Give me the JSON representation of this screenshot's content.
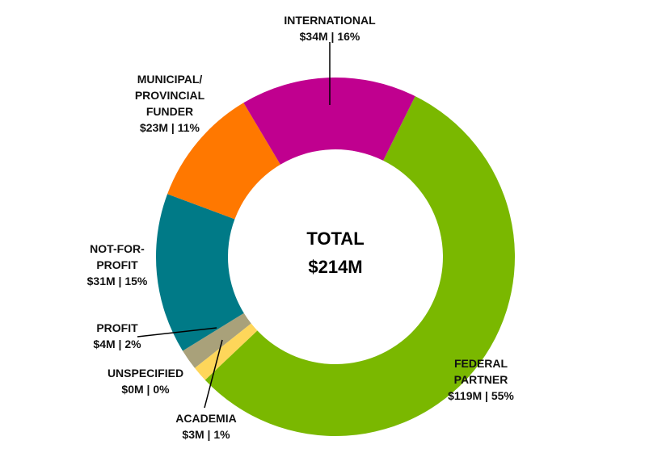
{
  "chart_data": {
    "type": "pie",
    "variant": "donut",
    "center_label": {
      "title": "TOTAL",
      "value": "$214M"
    },
    "unit": "$M",
    "slices": [
      {
        "name": "FEDERAL PARTNER",
        "name_lines": [
          "FEDERAL",
          "PARTNER"
        ],
        "value": 119,
        "percent": 55,
        "label": "$119M | 55%",
        "color": "#7ab800"
      },
      {
        "name": "ACADEMIA",
        "name_lines": [
          "ACADEMIA"
        ],
        "value": 3,
        "percent": 1,
        "label": "$3M | 1%",
        "color": "#fed65a"
      },
      {
        "name": "UNSPECIFIED",
        "name_lines": [
          "UNSPECIFIED"
        ],
        "value": 0,
        "percent": 0,
        "label": "$0M | 0%",
        "color": "#cccccc"
      },
      {
        "name": "PROFIT",
        "name_lines": [
          "PROFIT"
        ],
        "value": 4,
        "percent": 2,
        "label": "$4M | 2%",
        "color": "#a9a17a"
      },
      {
        "name": "NOT-FOR-PROFIT",
        "name_lines": [
          "NOT-FOR-",
          "PROFIT"
        ],
        "value": 31,
        "percent": 15,
        "label": "$31M | 15%",
        "color": "#007a87"
      },
      {
        "name": "MUNICIPAL/PROVINCIAL FUNDER",
        "name_lines": [
          "MUNICIPAL/",
          "PROVINCIAL",
          "FUNDER"
        ],
        "value": 23,
        "percent": 11,
        "label": "$23M | 11%",
        "color": "#ff7800"
      },
      {
        "name": "INTERNATIONAL",
        "name_lines": [
          "INTERNATIONAL"
        ],
        "value": 34,
        "percent": 16,
        "label": "$34M | 16%",
        "color": "#c0008f"
      }
    ]
  }
}
